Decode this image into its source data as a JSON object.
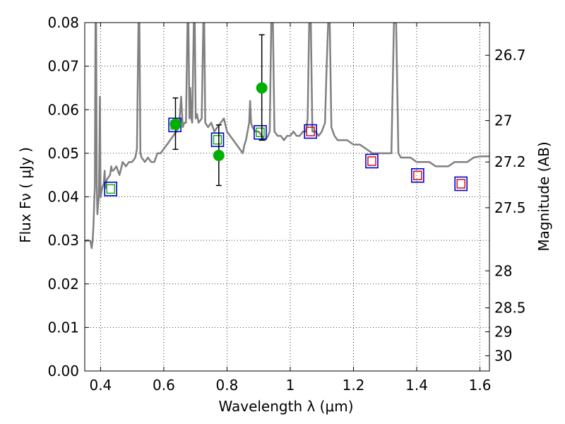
{
  "chart_data": {
    "type": "scatter",
    "xlabel": "Wavelength  λ (μm)",
    "ylabel": "Flux  Fν  ( μJy )",
    "y2label": "Magnitude (AB)",
    "xlim": [
      0.35,
      1.63
    ],
    "ylim": [
      0.0,
      0.08
    ],
    "grid": true,
    "x_ticks": [
      {
        "value": 0.4,
        "label": "0.4"
      },
      {
        "value": 0.6,
        "label": "0.6"
      },
      {
        "value": 0.8,
        "label": "0.8"
      },
      {
        "value": 1.0,
        "label": "1"
      },
      {
        "value": 1.2,
        "label": "1.2"
      },
      {
        "value": 1.4,
        "label": "1.4"
      },
      {
        "value": 1.6,
        "label": "1.6"
      }
    ],
    "y_ticks": [
      {
        "value": 0.0,
        "label": "0.00"
      },
      {
        "value": 0.01,
        "label": "0.01"
      },
      {
        "value": 0.02,
        "label": "0.02"
      },
      {
        "value": 0.03,
        "label": "0.03"
      },
      {
        "value": 0.04,
        "label": "0.04"
      },
      {
        "value": 0.05,
        "label": "0.05"
      },
      {
        "value": 0.06,
        "label": "0.06"
      },
      {
        "value": 0.07,
        "label": "0.07"
      },
      {
        "value": 0.08,
        "label": "0.08"
      }
    ],
    "y2_ticks": [
      {
        "flux": 0.0725,
        "label": "26.7"
      },
      {
        "flux": 0.0575,
        "label": "27"
      },
      {
        "flux": 0.048,
        "label": "27.2"
      },
      {
        "flux": 0.0375,
        "label": "27.5"
      },
      {
        "flux": 0.023,
        "label": "28"
      },
      {
        "flux": 0.0145,
        "label": "28.5"
      },
      {
        "flux": 0.009,
        "label": "29"
      },
      {
        "flux": 0.0035,
        "label": "30"
      }
    ],
    "template_spectrum": {
      "color": "#808080",
      "points": [
        [
          0.35,
          0.0298
        ],
        [
          0.36,
          0.03
        ],
        [
          0.368,
          0.0298
        ],
        [
          0.372,
          0.0282
        ],
        [
          0.375,
          0.03
        ],
        [
          0.378,
          0.034
        ],
        [
          0.38,
          0.039
        ],
        [
          0.382,
          0.042
        ],
        [
          0.384,
          0.08
        ],
        [
          0.386,
          0.08
        ],
        [
          0.388,
          0.043
        ],
        [
          0.39,
          0.036
        ],
        [
          0.392,
          0.038
        ],
        [
          0.395,
          0.04
        ],
        [
          0.398,
          0.063
        ],
        [
          0.4,
          0.04
        ],
        [
          0.405,
          0.042
        ],
        [
          0.41,
          0.043
        ],
        [
          0.413,
          0.046
        ],
        [
          0.415,
          0.042
        ],
        [
          0.42,
          0.044
        ],
        [
          0.43,
          0.045
        ],
        [
          0.434,
          0.047
        ],
        [
          0.436,
          0.046
        ],
        [
          0.44,
          0.046
        ],
        [
          0.45,
          0.047
        ],
        [
          0.46,
          0.045
        ],
        [
          0.47,
          0.048
        ],
        [
          0.48,
          0.047
        ],
        [
          0.49,
          0.048
        ],
        [
          0.5,
          0.048
        ],
        [
          0.51,
          0.049
        ],
        [
          0.515,
          0.051
        ],
        [
          0.52,
          0.08
        ],
        [
          0.523,
          0.08
        ],
        [
          0.526,
          0.05
        ],
        [
          0.53,
          0.049
        ],
        [
          0.54,
          0.048
        ],
        [
          0.55,
          0.049
        ],
        [
          0.56,
          0.048
        ],
        [
          0.57,
          0.048
        ],
        [
          0.58,
          0.05
        ],
        [
          0.59,
          0.05
        ],
        [
          0.6,
          0.051
        ],
        [
          0.61,
          0.052
        ],
        [
          0.62,
          0.053
        ],
        [
          0.63,
          0.054
        ],
        [
          0.64,
          0.055
        ],
        [
          0.645,
          0.056
        ],
        [
          0.65,
          0.058
        ],
        [
          0.655,
          0.063
        ],
        [
          0.66,
          0.056
        ],
        [
          0.665,
          0.057
        ],
        [
          0.67,
          0.057
        ],
        [
          0.675,
          0.08
        ],
        [
          0.678,
          0.08
        ],
        [
          0.681,
          0.058
        ],
        [
          0.684,
          0.065
        ],
        [
          0.687,
          0.058
        ],
        [
          0.69,
          0.057
        ],
        [
          0.695,
          0.08
        ],
        [
          0.698,
          0.08
        ],
        [
          0.701,
          0.058
        ],
        [
          0.705,
          0.059
        ],
        [
          0.71,
          0.057
        ],
        [
          0.72,
          0.058
        ],
        [
          0.725,
          0.08
        ],
        [
          0.728,
          0.08
        ],
        [
          0.731,
          0.057
        ],
        [
          0.74,
          0.056
        ],
        [
          0.75,
          0.057
        ],
        [
          0.76,
          0.055
        ],
        [
          0.77,
          0.056
        ],
        [
          0.78,
          0.057
        ],
        [
          0.79,
          0.058
        ],
        [
          0.8,
          0.055
        ],
        [
          0.81,
          0.054
        ],
        [
          0.82,
          0.053
        ],
        [
          0.83,
          0.052
        ],
        [
          0.84,
          0.051
        ],
        [
          0.85,
          0.05
        ],
        [
          0.855,
          0.052
        ],
        [
          0.86,
          0.053
        ],
        [
          0.87,
          0.057
        ],
        [
          0.873,
          0.062
        ],
        [
          0.876,
          0.057
        ],
        [
          0.88,
          0.056
        ],
        [
          0.89,
          0.055
        ],
        [
          0.9,
          0.055
        ],
        [
          0.91,
          0.054
        ],
        [
          0.92,
          0.053
        ],
        [
          0.93,
          0.054
        ],
        [
          0.935,
          0.055
        ],
        [
          0.94,
          0.08
        ],
        [
          0.945,
          0.08
        ],
        [
          0.95,
          0.055
        ],
        [
          0.96,
          0.054
        ],
        [
          0.97,
          0.054
        ],
        [
          0.98,
          0.053
        ],
        [
          0.99,
          0.054
        ],
        [
          1.0,
          0.054
        ],
        [
          1.01,
          0.055
        ],
        [
          1.02,
          0.054
        ],
        [
          1.03,
          0.054
        ],
        [
          1.04,
          0.055
        ],
        [
          1.05,
          0.055
        ],
        [
          1.055,
          0.058
        ],
        [
          1.06,
          0.08
        ],
        [
          1.065,
          0.08
        ],
        [
          1.07,
          0.055
        ],
        [
          1.08,
          0.055
        ],
        [
          1.09,
          0.054
        ],
        [
          1.1,
          0.055
        ],
        [
          1.11,
          0.057
        ],
        [
          1.115,
          0.07
        ],
        [
          1.12,
          0.08
        ],
        [
          1.125,
          0.08
        ],
        [
          1.13,
          0.056
        ],
        [
          1.14,
          0.054
        ],
        [
          1.15,
          0.053
        ],
        [
          1.16,
          0.053
        ],
        [
          1.18,
          0.053
        ],
        [
          1.2,
          0.052
        ],
        [
          1.22,
          0.052
        ],
        [
          1.24,
          0.051
        ],
        [
          1.26,
          0.05
        ],
        [
          1.28,
          0.05
        ],
        [
          1.3,
          0.05
        ],
        [
          1.32,
          0.05
        ],
        [
          1.328,
          0.08
        ],
        [
          1.335,
          0.08
        ],
        [
          1.342,
          0.05
        ],
        [
          1.35,
          0.049
        ],
        [
          1.36,
          0.049
        ],
        [
          1.38,
          0.049
        ],
        [
          1.4,
          0.048
        ],
        [
          1.42,
          0.048
        ],
        [
          1.44,
          0.048
        ],
        [
          1.46,
          0.047
        ],
        [
          1.48,
          0.047
        ],
        [
          1.5,
          0.047
        ],
        [
          1.52,
          0.048
        ],
        [
          1.54,
          0.048
        ],
        [
          1.56,
          0.048
        ],
        [
          1.58,
          0.049
        ],
        [
          1.6,
          0.0493
        ],
        [
          1.63,
          0.0493
        ]
      ]
    },
    "model_photometry": {
      "marker": "open-square",
      "color": "#0000cc",
      "points": [
        [
          0.432,
          0.0418
        ],
        [
          0.635,
          0.0565
        ],
        [
          0.77,
          0.0531
        ],
        [
          0.905,
          0.0548
        ],
        [
          1.064,
          0.055
        ],
        [
          1.258,
          0.0482
        ],
        [
          1.403,
          0.0449
        ],
        [
          1.54,
          0.043
        ]
      ]
    },
    "observed_photometry": {
      "marker": "small-open-square",
      "colors": [
        "#00b000",
        "#00b000",
        "#00b000",
        "#00b000",
        "#cc0000",
        "#cc0000",
        "#cc0000",
        "#cc0000"
      ],
      "points": [
        [
          0.432,
          0.0418
        ],
        [
          0.635,
          0.0565
        ],
        [
          0.77,
          0.0531
        ],
        [
          0.905,
          0.0548
        ],
        [
          1.064,
          0.055
        ],
        [
          1.258,
          0.0482
        ],
        [
          1.403,
          0.0449
        ],
        [
          1.54,
          0.043
        ]
      ]
    },
    "detections": {
      "marker": "filled-circle",
      "color": "#00b000",
      "points": [
        {
          "x": 0.637,
          "y": 0.0567,
          "yerr_low": 0.0058,
          "yerr_high": 0.006
        },
        {
          "x": 0.774,
          "y": 0.0495,
          "yerr_low": 0.0069,
          "yerr_high": 0.007
        },
        {
          "x": 0.91,
          "y": 0.065,
          "yerr_low": 0.012,
          "yerr_high": 0.0122
        }
      ]
    }
  }
}
